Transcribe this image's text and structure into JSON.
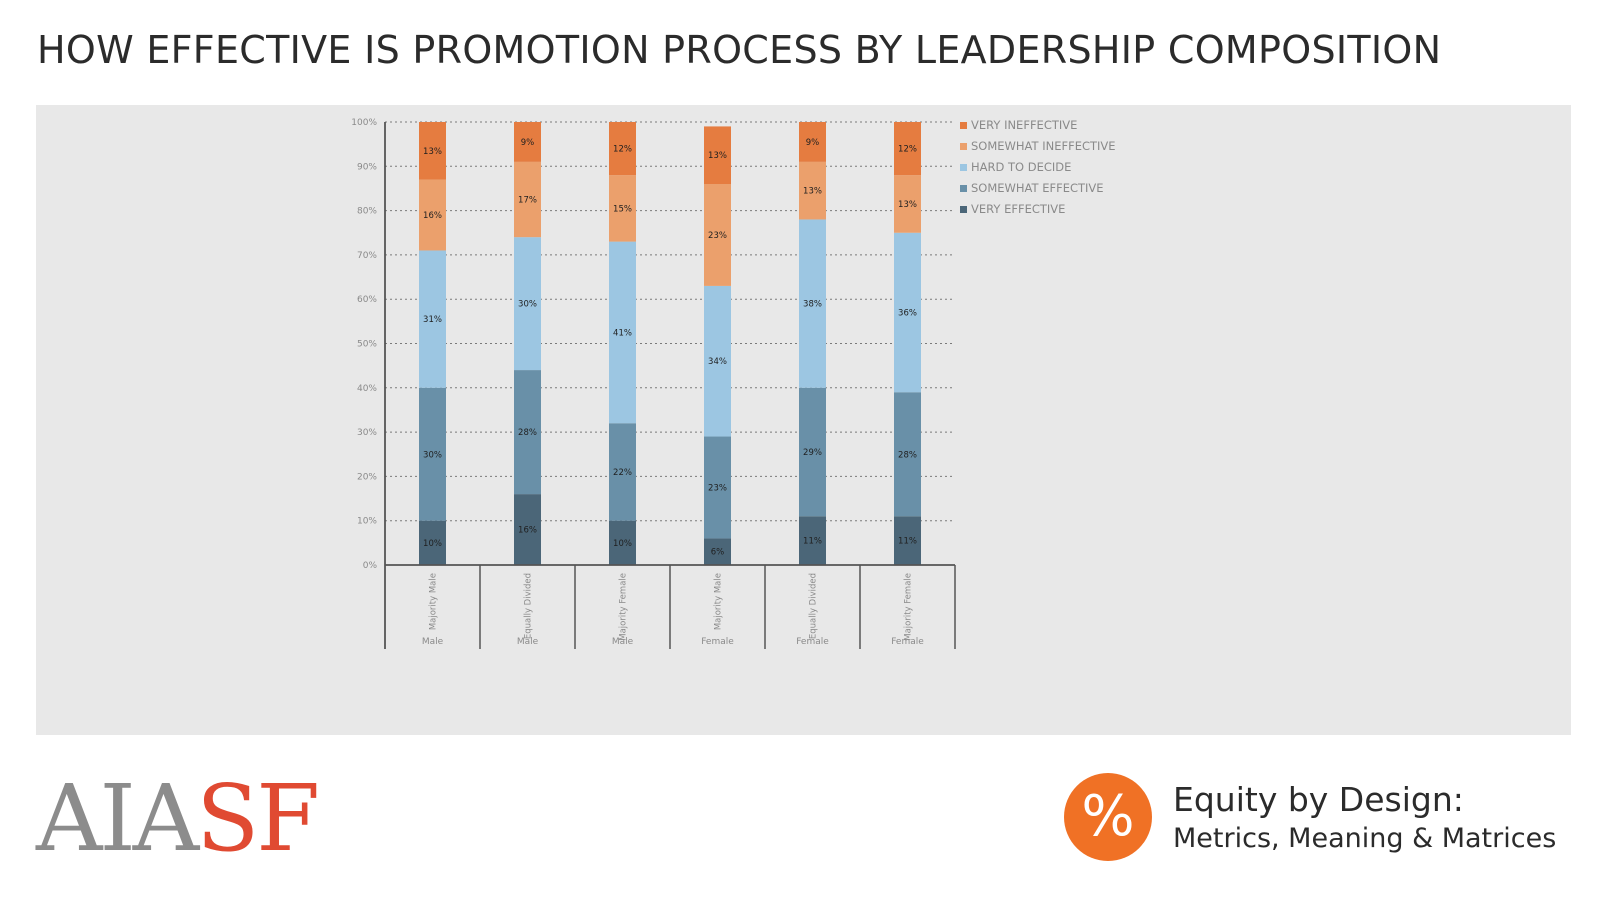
{
  "page": {
    "title": "HOW EFFECTIVE IS PROMOTION PROCESS BY LEADERSHIP COMPOSITION"
  },
  "footer": {
    "logo_part1": "AIA",
    "logo_part2": "SF",
    "badge_symbol": "%",
    "brand_title": "Equity by Design:",
    "brand_subtitle": "Metrics, Meaning & Matrices"
  },
  "chart_data": {
    "type": "bar",
    "stacked": true,
    "categories": [
      "Majority Male",
      "Equally Divided",
      "Majority Female",
      "Majority Male",
      "Equally Divided",
      "Majority Female"
    ],
    "groups": [
      "Male",
      "Male",
      "Male",
      "Female",
      "Female",
      "Female"
    ],
    "ylim": [
      0,
      100
    ],
    "yticks": [
      "0%",
      "10%",
      "20%",
      "30%",
      "40%",
      "50%",
      "60%",
      "70%",
      "80%",
      "90%",
      "100%"
    ],
    "grid": true,
    "legend_position": "top-right",
    "series": [
      {
        "name": "VERY EFFECTIVE",
        "color": "#4b6678",
        "values": [
          10,
          16,
          10,
          6,
          11,
          11
        ]
      },
      {
        "name": "SOMEWHAT EFFECTIVE",
        "color": "#6990a8",
        "values": [
          30,
          28,
          22,
          23,
          29,
          28
        ]
      },
      {
        "name": "HARD TO DECIDE",
        "color": "#9cc6e2",
        "values": [
          31,
          30,
          41,
          34,
          38,
          36
        ]
      },
      {
        "name": "SOMEWHAT INEFFECTIVE",
        "color": "#eba06c",
        "values": [
          16,
          17,
          15,
          23,
          13,
          13
        ]
      },
      {
        "name": "VERY INEFFECTIVE",
        "color": "#e57c40",
        "values": [
          13,
          9,
          12,
          13,
          9,
          12
        ]
      }
    ],
    "labels": [
      [
        "10%",
        "16%",
        "10%",
        "6%",
        "11%",
        "11%"
      ],
      [
        "30%",
        "28%",
        "22%",
        "23%",
        "29%",
        "28%"
      ],
      [
        "31%",
        "30%",
        "41%",
        "34%",
        "38%",
        "36%"
      ],
      [
        "16%",
        "17%",
        "15%",
        "23%",
        "13%",
        "13%"
      ],
      [
        "13%",
        "9%",
        "12%",
        "13%",
        "9%",
        "12%"
      ]
    ]
  }
}
